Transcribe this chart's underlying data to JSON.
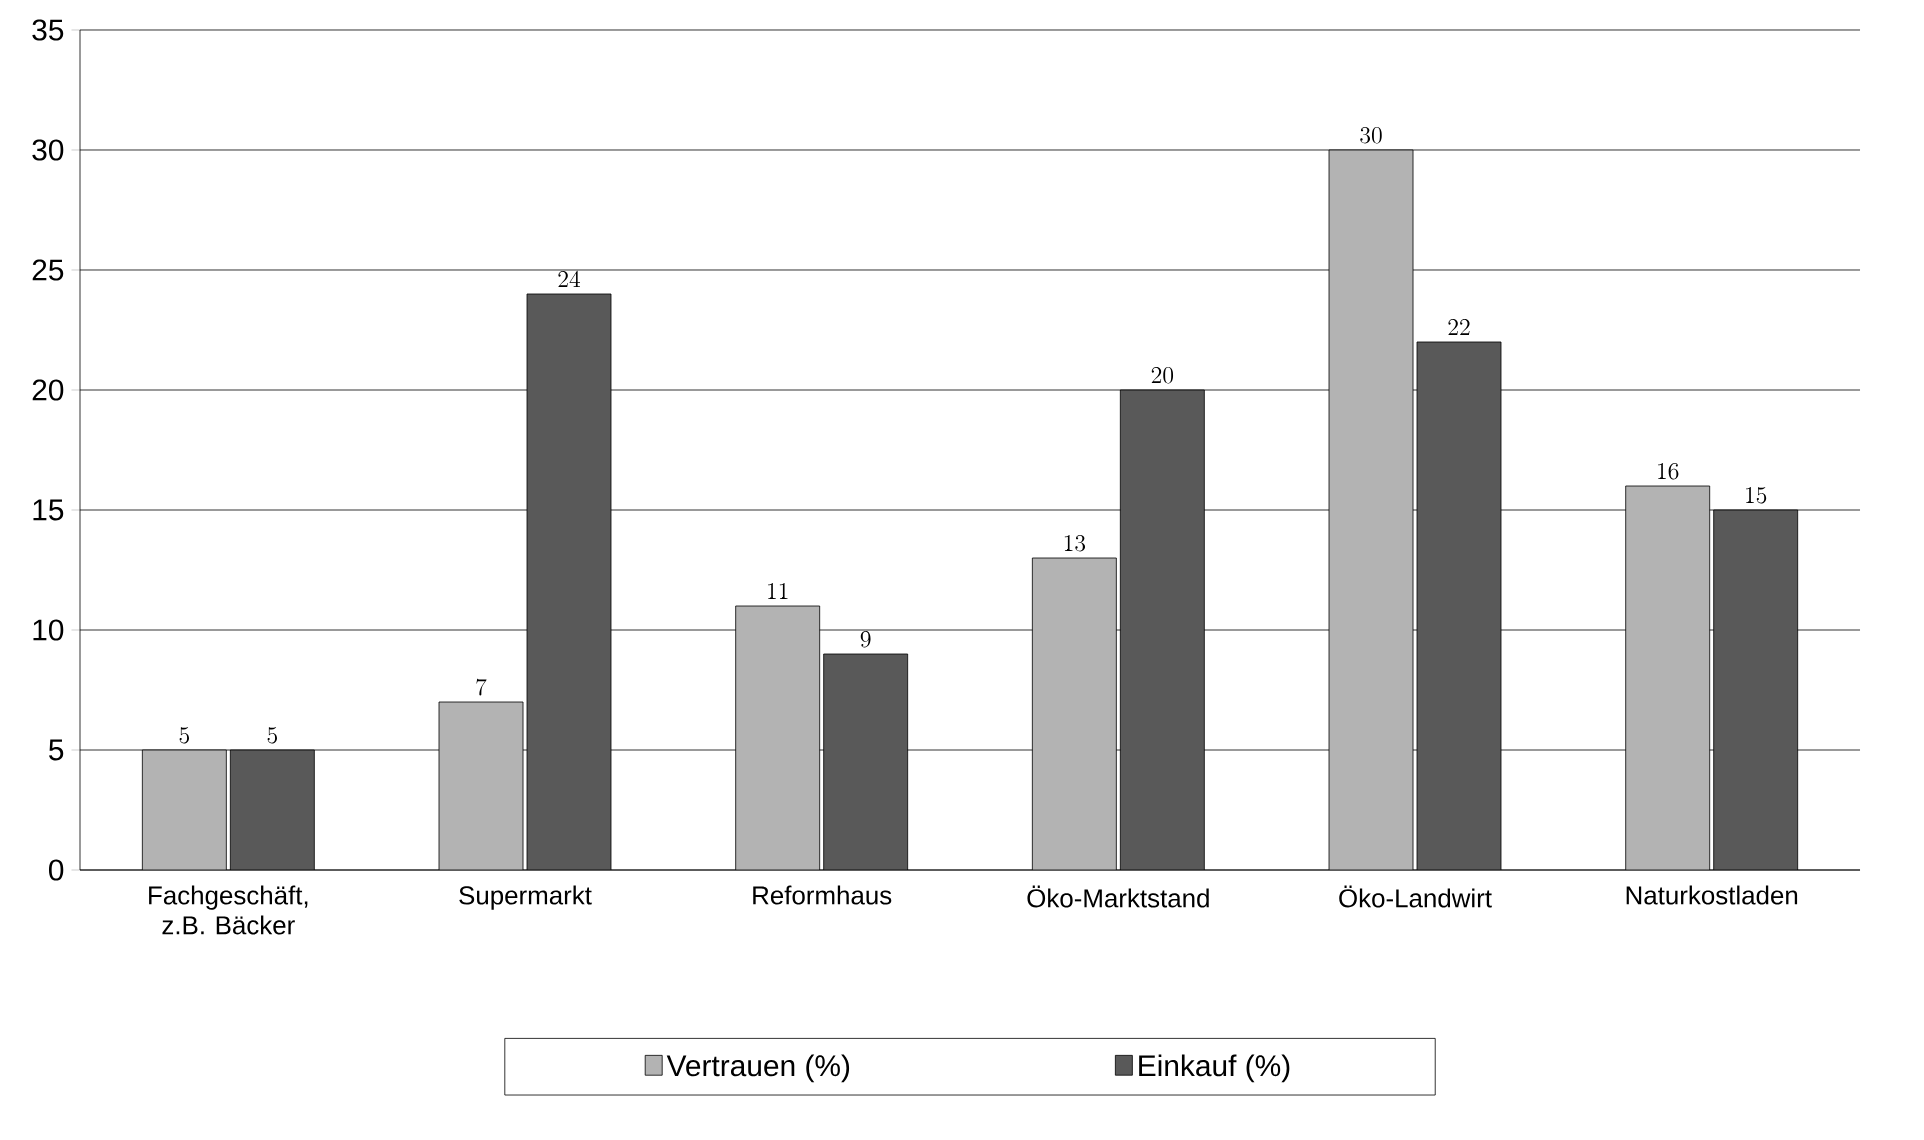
{
  "chart_data": {
    "type": "bar",
    "categories": [
      "Fachgeschäft, z.B. Bäcker",
      "Supermarkt",
      "Reformhaus",
      "Öko-Marktstand",
      "Öko-Landwirt",
      "Naturkostladen"
    ],
    "series": [
      {
        "name": "Vertrauen (%)",
        "color": "#b3b3b3",
        "values": [
          5,
          7,
          11,
          13,
          30,
          16
        ]
      },
      {
        "name": "Einkauf (%)",
        "color": "#595959",
        "values": [
          5,
          24,
          9,
          20,
          22,
          15
        ]
      }
    ],
    "ylim": [
      0,
      35
    ],
    "yticks": [
      0,
      5,
      10,
      15,
      20,
      25,
      30,
      35
    ],
    "grid": "y",
    "legend": "bottom",
    "data_labels": true
  }
}
